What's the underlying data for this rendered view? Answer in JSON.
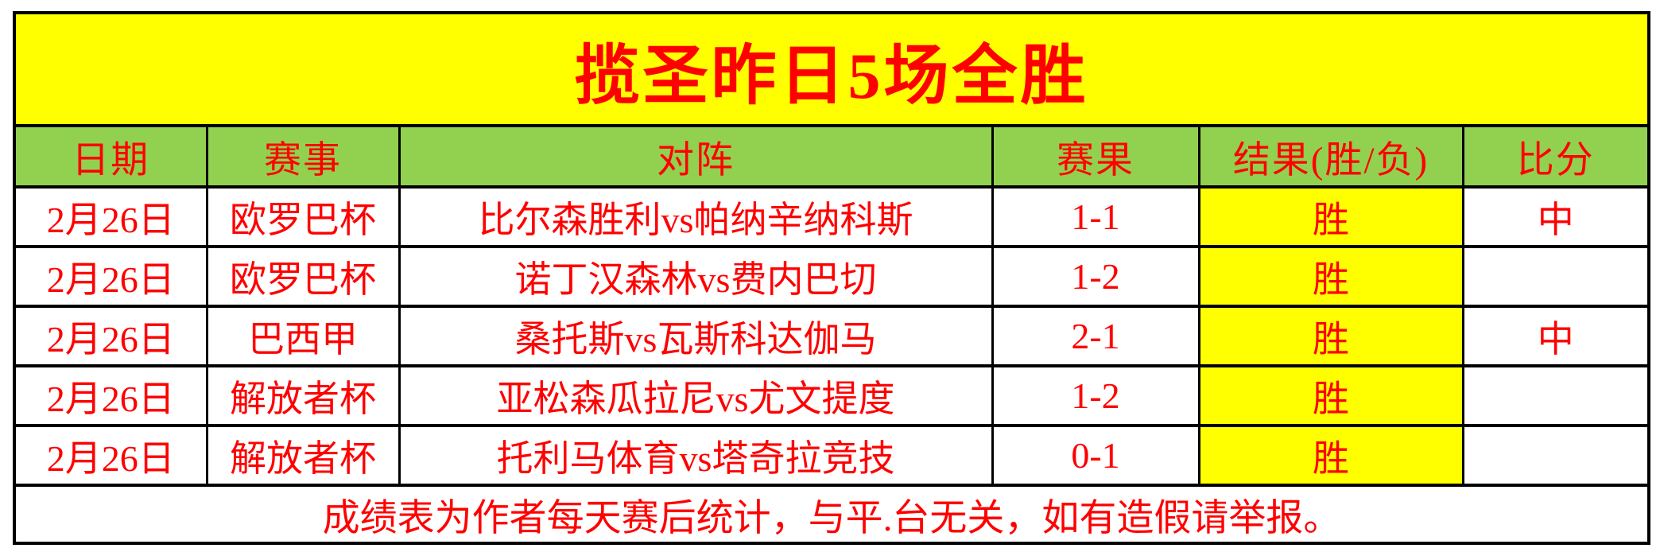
{
  "title_banner": "揽圣昨日5场全胜",
  "table": {
    "columns": [
      "日期",
      "赛事",
      "对阵",
      "赛果",
      "结果(胜/负)",
      "比分"
    ],
    "rows": [
      {
        "date": "2月26日",
        "competition": "欧罗巴杯",
        "matchup": "比尔森胜利vs帕纳辛纳科斯",
        "score": "1-1",
        "result": "胜",
        "hit": "中"
      },
      {
        "date": "2月26日",
        "competition": "欧罗巴杯",
        "matchup": "诺丁汉森林vs费内巴切",
        "score": "1-2",
        "result": "胜",
        "hit": ""
      },
      {
        "date": "2月26日",
        "competition": "巴西甲",
        "matchup": "桑托斯vs瓦斯科达伽马",
        "score": "2-1",
        "result": "胜",
        "hit": "中"
      },
      {
        "date": "2月26日",
        "competition": "解放者杯",
        "matchup": "亚松森瓜拉尼vs尤文提度",
        "score": "1-2",
        "result": "胜",
        "hit": ""
      },
      {
        "date": "2月26日",
        "competition": "解放者杯",
        "matchup": "托利马体育vs塔奇拉竞技",
        "score": "0-1",
        "result": "胜",
        "hit": ""
      }
    ]
  },
  "footer_note": "成绩表为作者每天赛后统计，与平.台无关，如有造假请举报。",
  "colors": {
    "title_bg": "#FFFF00",
    "header_bg": "#92D050",
    "result_bg": "#FFFF00",
    "text": "#FF0000",
    "border": "#000000"
  }
}
